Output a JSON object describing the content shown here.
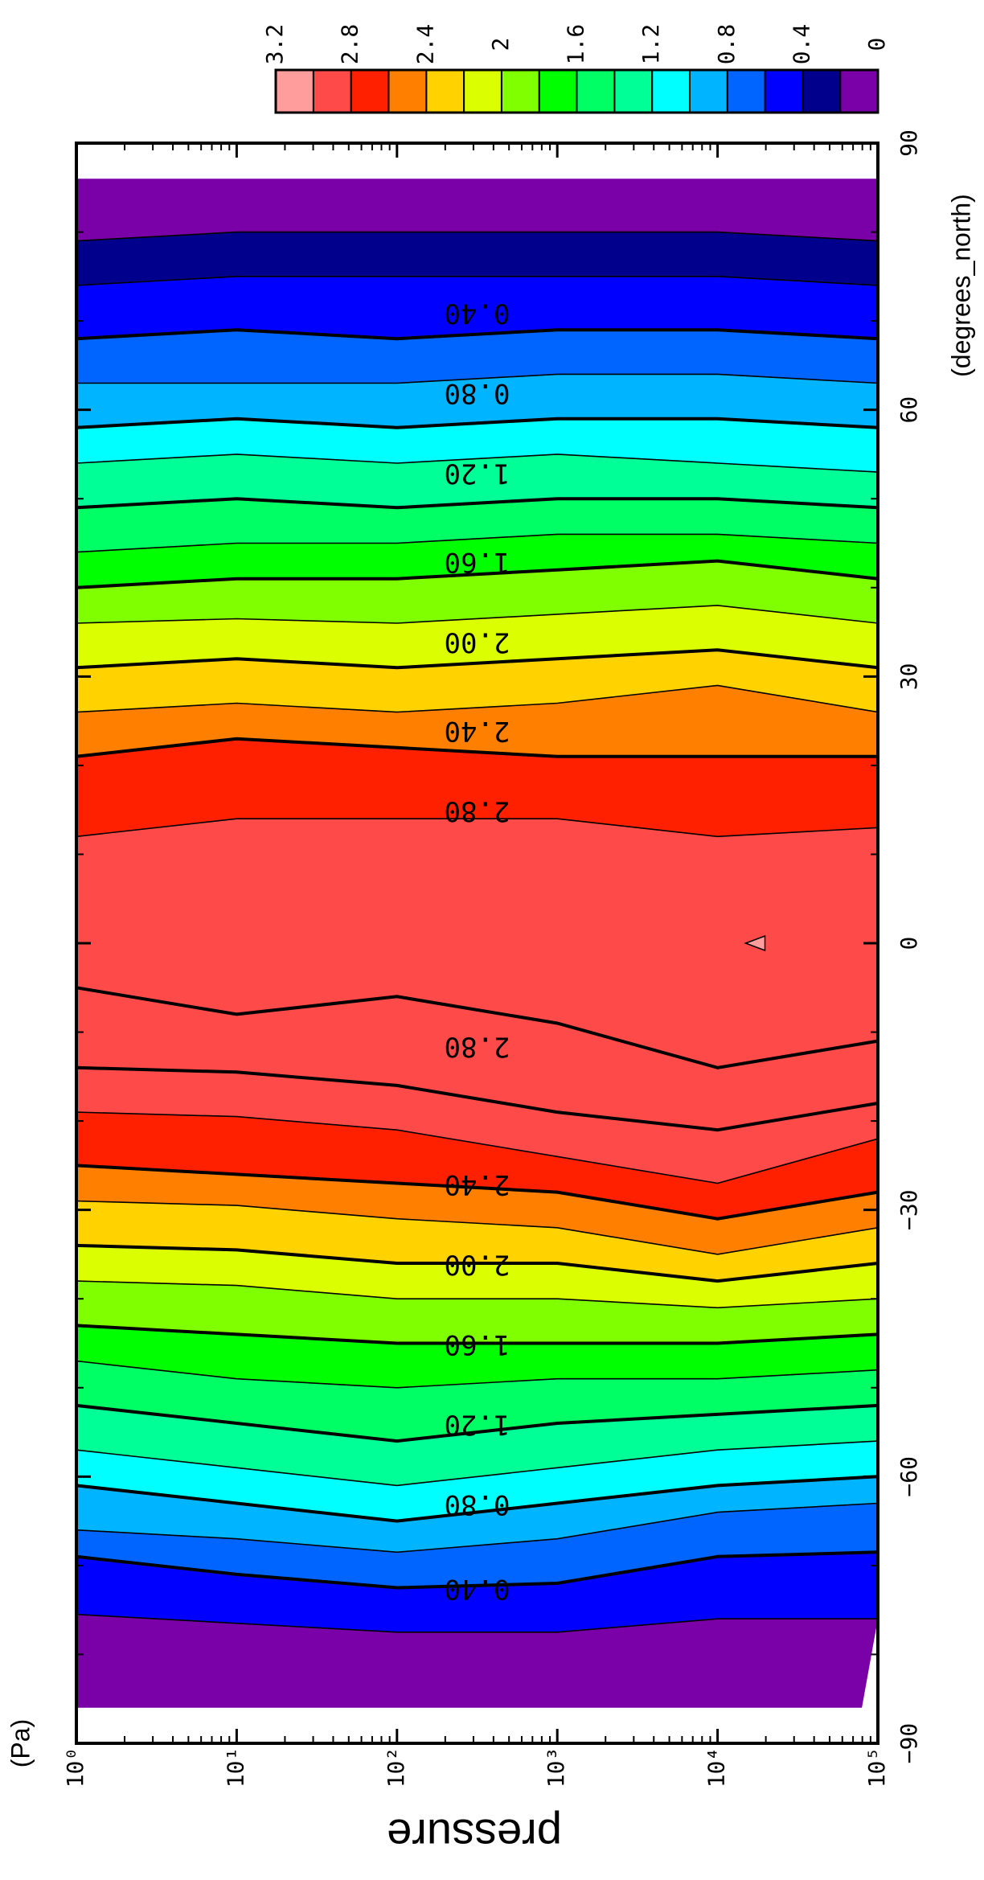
{
  "chart_data": {
    "type": "heatmap",
    "title": "",
    "xlabel": "pressure",
    "x_unit": "(Pa)",
    "x_scale": "log",
    "xlim": [
      1,
      100000
    ],
    "x_tick_labels": [
      "10⁰",
      "10¹",
      "10²",
      "10³",
      "10⁴",
      "10⁵"
    ],
    "ylabel": "",
    "y_unit": "(degrees_north)",
    "ylim": [
      -90,
      90
    ],
    "y_tick_labels": [
      "−90",
      "−60",
      "−30",
      "0",
      "30",
      "60",
      "90"
    ],
    "colorbar": {
      "levels": [
        0,
        0.2,
        0.4,
        0.6,
        0.8,
        1.0,
        1.2,
        1.4,
        1.6,
        1.8,
        2.0,
        2.2,
        2.4,
        2.6,
        2.8,
        3.0,
        3.2
      ],
      "tick_labels": [
        "0",
        "0.4",
        "0.8",
        "1.2",
        "1.6",
        "2",
        "2.4",
        "2.8",
        "3.2"
      ],
      "colors": [
        "#7a00a8",
        "#00008c",
        "#0000ff",
        "#0064ff",
        "#00b4ff",
        "#00ffff",
        "#00ff96",
        "#00ff64",
        "#00ff00",
        "#80ff00",
        "#dcff00",
        "#ffd200",
        "#ff8000",
        "#ff2000",
        "#ff4a4a",
        "#ff9c9c"
      ]
    },
    "contour_labels": [
      "0.40",
      "0.80",
      "1.20",
      "1.60",
      "2.00",
      "2.40",
      "2.80",
      "2.80",
      "2.40",
      "2.00",
      "1.60",
      "1.20",
      "0.80",
      "0.40"
    ],
    "boundaries": [
      {
        "level": 0.2,
        "x_log": [
          0,
          1,
          2,
          3,
          4,
          5
        ],
        "y": [
          -75.5,
          -76.5,
          -77.5,
          -77.5,
          -76,
          -76
        ]
      },
      {
        "level": 0.4,
        "x_log": [
          0,
          1,
          2,
          3,
          4,
          5
        ],
        "y": [
          -69,
          -71,
          -72.5,
          -72,
          -69,
          -68.5
        ]
      },
      {
        "level": 0.6,
        "x_log": [
          0,
          1,
          2,
          3,
          4,
          5
        ],
        "y": [
          -66,
          -67,
          -68.5,
          -67,
          -64,
          -63
        ]
      },
      {
        "level": 0.8,
        "x_log": [
          0,
          1,
          2,
          3,
          4,
          5
        ],
        "y": [
          -61,
          -63,
          -65,
          -63,
          -61,
          -60
        ]
      },
      {
        "level": 1.0,
        "x_log": [
          0,
          1,
          2,
          3,
          4,
          5
        ],
        "y": [
          -57,
          -59,
          -61,
          -59,
          -57,
          -56
        ]
      },
      {
        "level": 1.2,
        "x_log": [
          0,
          1,
          2,
          3,
          4,
          5
        ],
        "y": [
          -52,
          -54,
          -56,
          -54,
          -53,
          -52
        ]
      },
      {
        "level": 1.4,
        "x_log": [
          0,
          1,
          2,
          3,
          4,
          5
        ],
        "y": [
          -47,
          -49,
          -50,
          -49,
          -49,
          -48
        ]
      },
      {
        "level": 1.6,
        "x_log": [
          0,
          1,
          2,
          3,
          4,
          5
        ],
        "y": [
          -43,
          -44,
          -45,
          -45,
          -45,
          -44
        ]
      },
      {
        "level": 1.8,
        "x_log": [
          0,
          1,
          2,
          3,
          4,
          5
        ],
        "y": [
          -38,
          -38.5,
          -40,
          -40,
          -41,
          -40
        ]
      },
      {
        "level": 2.0,
        "x_log": [
          0,
          1,
          2,
          3,
          4,
          5
        ],
        "y": [
          -34,
          -34.5,
          -36,
          -36,
          -38,
          -36
        ]
      },
      {
        "level": 2.2,
        "x_log": [
          0,
          1,
          2,
          3,
          4,
          5
        ],
        "y": [
          -29,
          -29.5,
          -31,
          -32,
          -35,
          -32
        ]
      },
      {
        "level": 2.4,
        "x_log": [
          0,
          1,
          2,
          3,
          4,
          5
        ],
        "y": [
          -25,
          -26,
          -27,
          -28,
          -31,
          -28
        ]
      },
      {
        "level": 2.6,
        "x_log": [
          0,
          1,
          2,
          3,
          4,
          5
        ],
        "y": [
          -19,
          -19.5,
          -21,
          -24,
          -27,
          -22
        ]
      },
      {
        "level": 2.8,
        "x_log": [
          0,
          1,
          2,
          3,
          4,
          5
        ],
        "y": [
          -14,
          -14.5,
          -16,
          -19,
          -21,
          -18
        ]
      },
      {
        "level": 2.8,
        "x_log": [
          0,
          1,
          2,
          3,
          4,
          5
        ],
        "y": [
          -5,
          -8,
          -6,
          -9,
          -14,
          -11
        ]
      },
      {
        "level": 2.6,
        "x_log": [
          0,
          1,
          2,
          3,
          4,
          5
        ],
        "y": [
          12,
          14,
          14,
          14,
          12,
          13
        ]
      },
      {
        "level": 2.4,
        "x_log": [
          0,
          1,
          2,
          3,
          4,
          5
        ],
        "y": [
          21,
          23,
          22,
          21,
          21,
          21
        ]
      },
      {
        "level": 2.2,
        "x_log": [
          0,
          1,
          2,
          3,
          4,
          5
        ],
        "y": [
          26,
          27,
          26,
          27,
          29,
          26
        ]
      },
      {
        "level": 2.0,
        "x_log": [
          0,
          1,
          2,
          3,
          4,
          5
        ],
        "y": [
          31,
          32,
          31,
          32,
          33,
          31
        ]
      },
      {
        "level": 1.8,
        "x_log": [
          0,
          1,
          2,
          3,
          4,
          5
        ],
        "y": [
          36,
          36.5,
          36,
          37,
          38,
          36
        ]
      },
      {
        "level": 1.6,
        "x_log": [
          0,
          1,
          2,
          3,
          4,
          5
        ],
        "y": [
          40,
          41,
          41,
          42,
          43,
          41
        ]
      },
      {
        "level": 1.4,
        "x_log": [
          0,
          1,
          2,
          3,
          4,
          5
        ],
        "y": [
          44,
          45,
          45,
          46,
          46,
          45
        ]
      },
      {
        "level": 1.2,
        "x_log": [
          0,
          1,
          2,
          3,
          4,
          5
        ],
        "y": [
          49,
          50,
          49,
          50,
          50,
          49
        ]
      },
      {
        "level": 1.0,
        "x_log": [
          0,
          1,
          2,
          3,
          4,
          5
        ],
        "y": [
          54,
          55,
          54,
          55,
          54,
          53
        ]
      },
      {
        "level": 0.8,
        "x_log": [
          0,
          1,
          2,
          3,
          4,
          5
        ],
        "y": [
          58,
          59,
          58,
          59,
          59,
          58
        ]
      },
      {
        "level": 0.6,
        "x_log": [
          0,
          1,
          2,
          3,
          4,
          5
        ],
        "y": [
          63,
          63,
          63,
          64,
          64,
          63
        ]
      },
      {
        "level": 0.4,
        "x_log": [
          0,
          1,
          2,
          3,
          4,
          5
        ],
        "y": [
          68,
          69,
          68,
          69,
          69,
          68
        ]
      },
      {
        "level": 0.2,
        "x_log": [
          0,
          1,
          2,
          3,
          4,
          5
        ],
        "y": [
          74,
          75,
          75,
          75,
          75,
          74
        ]
      },
      {
        "level": 0.0,
        "x_log": [
          0,
          1,
          2,
          3,
          4,
          5
        ],
        "y": [
          79,
          80,
          80,
          80,
          80,
          79
        ]
      }
    ],
    "pink_mark": {
      "x": 18000,
      "y": 0
    }
  }
}
